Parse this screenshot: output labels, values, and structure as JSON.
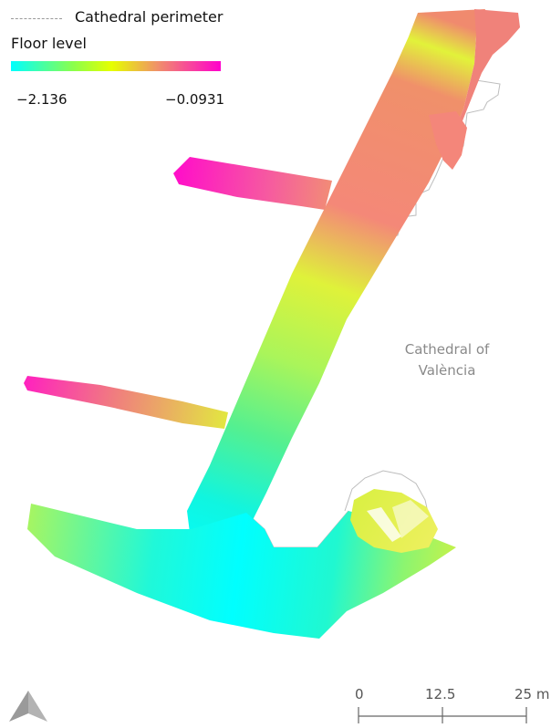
{
  "legend": {
    "perimeter_label": "Cathedral perimeter",
    "title": "Floor level",
    "min_label": "−2.136",
    "max_label": "−0.0931",
    "colors": [
      "#00ffff",
      "#8cff4a",
      "#e6ff00",
      "#f0906a",
      "#ff00cc"
    ]
  },
  "map": {
    "place_label_line1": "Cathedral of",
    "place_label_line2": "València",
    "perimeter_color": "#bdbdbd"
  },
  "scale_bar": {
    "labels": [
      "0",
      "12.5",
      "25 m"
    ]
  },
  "north_arrow": {
    "icon": "north-arrow-icon",
    "color": "#aaaaaa"
  }
}
